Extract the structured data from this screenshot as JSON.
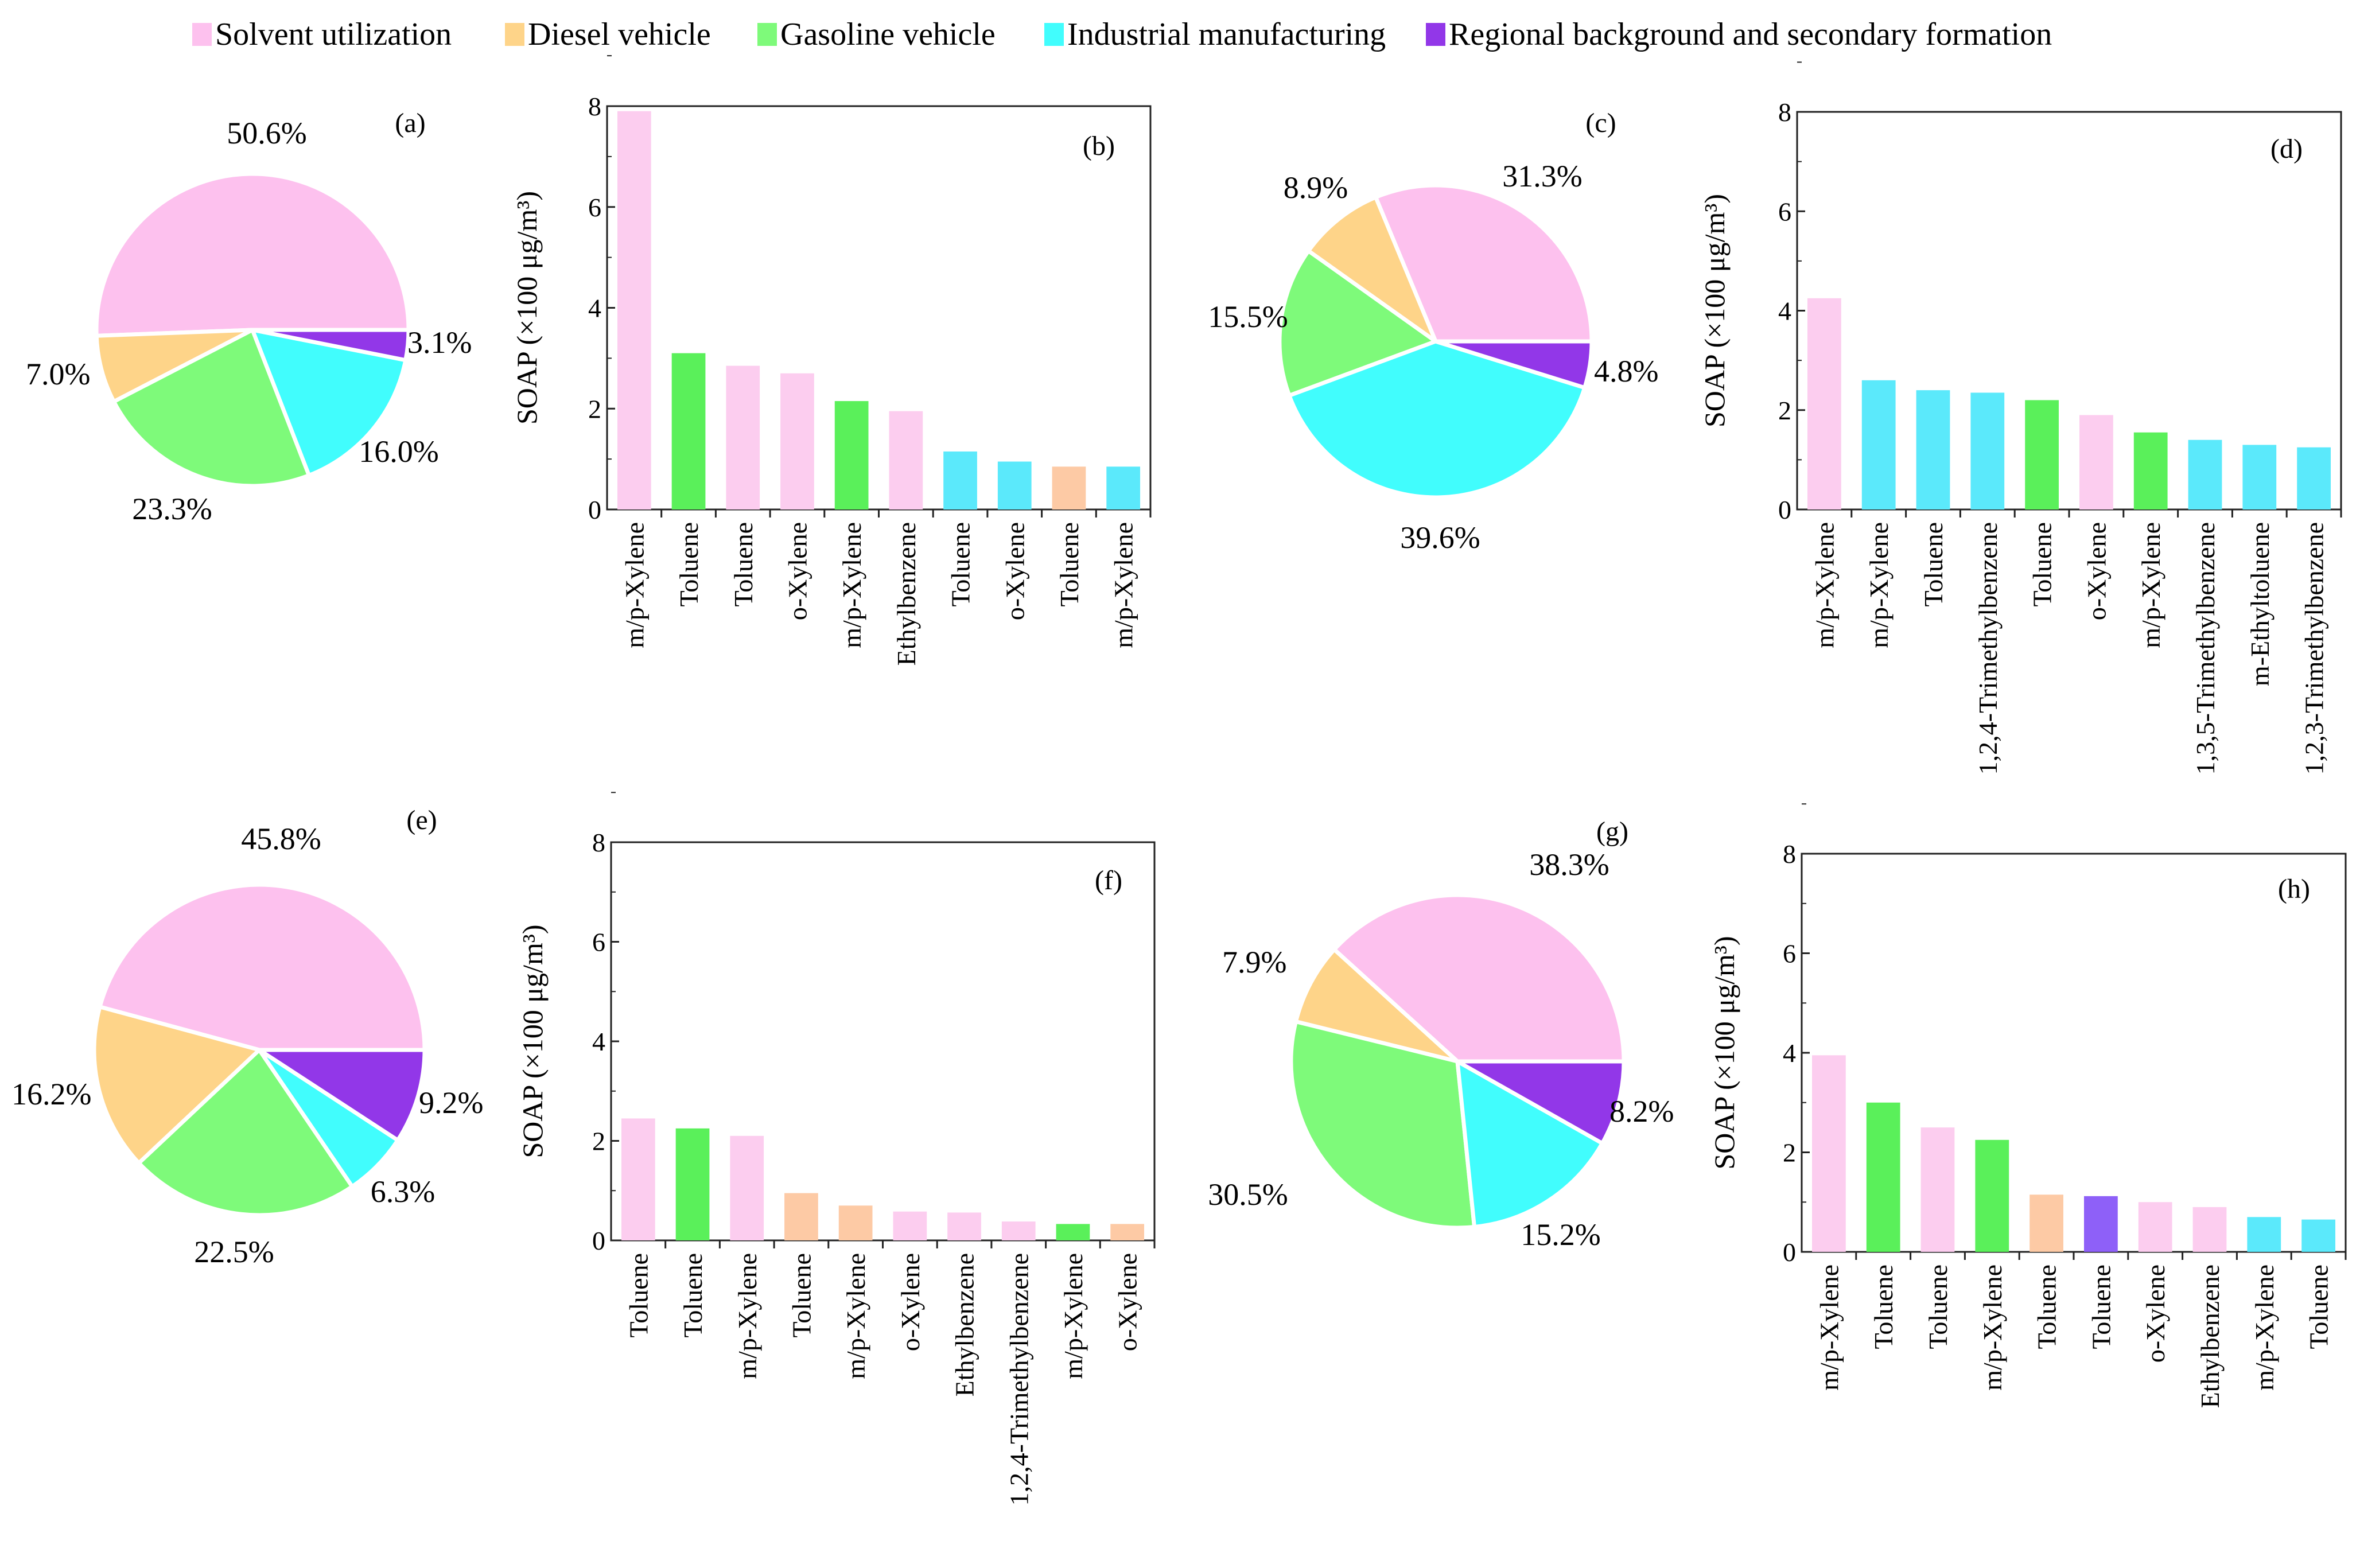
{
  "colors": {
    "Solvent utilization": "#fdc1ee",
    "Diesel vehicle": "#fed489",
    "Gasoline vehicle": "#7efa7a",
    "Industrial manufacturing": "#41fdfd",
    "Regional background and secondary formation": "#9237e8",
    "bar": {
      "Solvent utilization": "#fccdef",
      "Diesel vehicle": "#fdcaa5",
      "Gasoline vehicle": "#5af05a",
      "Industrial manufacturing": "#5be9fb",
      "Regional background and secondary formation": "#8e60f8"
    }
  },
  "legend": [
    {
      "label": "Solvent utilization",
      "source": "Solvent utilization"
    },
    {
      "label": "Diesel vehicle",
      "source": "Diesel vehicle"
    },
    {
      "label": "Gasoline vehicle",
      "source": "Gasoline vehicle"
    },
    {
      "label": "Industrial manufacturing",
      "source": "Industrial manufacturing"
    },
    {
      "label": "Regional background and secondary formation",
      "source": "Regional background and secondary formation"
    }
  ],
  "chart_data": [
    {
      "type": "pie",
      "panel": "(a)",
      "slices": [
        {
          "source": "Solvent utilization",
          "value": 50.6,
          "label": "50.6%"
        },
        {
          "source": "Diesel vehicle",
          "value": 7.0,
          "label": "7.0%"
        },
        {
          "source": "Gasoline vehicle",
          "value": 23.3,
          "label": "23.3%"
        },
        {
          "source": "Industrial manufacturing",
          "value": 16.0,
          "label": "16.0%"
        },
        {
          "source": "Regional background and secondary formation",
          "value": 3.1,
          "label": "3.1%"
        }
      ]
    },
    {
      "type": "bar",
      "panel": "(b)",
      "ylabel": "SOAP (×100 μg/m³)",
      "ylim": [
        0,
        8
      ],
      "yticks": [
        0,
        2,
        4,
        6,
        8
      ],
      "categories": [
        "m/p-Xylene",
        "Toluene",
        "Toluene",
        "o-Xylene",
        "m/p-Xylene",
        "Ethylbenzene",
        "Toluene",
        "o-Xylene",
        "Toluene",
        "m/p-Xylene"
      ],
      "values": [
        7.9,
        3.1,
        2.85,
        2.7,
        2.15,
        1.95,
        1.15,
        0.95,
        0.85,
        0.85
      ],
      "sources": [
        "Solvent utilization",
        "Gasoline vehicle",
        "Solvent utilization",
        "Solvent utilization",
        "Gasoline vehicle",
        "Solvent utilization",
        "Industrial manufacturing",
        "Industrial manufacturing",
        "Diesel vehicle",
        "Industrial manufacturing"
      ]
    },
    {
      "type": "pie",
      "panel": "(c)",
      "slices": [
        {
          "source": "Solvent utilization",
          "value": 31.3,
          "label": "31.3%"
        },
        {
          "source": "Diesel vehicle",
          "value": 8.9,
          "label": "8.9%"
        },
        {
          "source": "Gasoline vehicle",
          "value": 15.5,
          "label": "15.5%"
        },
        {
          "source": "Industrial manufacturing",
          "value": 39.6,
          "label": "39.6%"
        },
        {
          "source": "Regional background and secondary formation",
          "value": 4.8,
          "label": "4.8%"
        }
      ]
    },
    {
      "type": "bar",
      "panel": "(d)",
      "ylabel": "SOAP (×100 μg/m³)",
      "ylim": [
        0,
        8
      ],
      "yticks": [
        0,
        2,
        4,
        6,
        8
      ],
      "categories": [
        "m/p-Xylene",
        "m/p-Xylene",
        "Toluene",
        "1,2,4-Trimethylbenzene",
        "Toluene",
        "o-Xylene",
        "m/p-Xylene",
        "1,3,5-Trimethylbenzene",
        "m-Ethyltoluene",
        "1,2,3-Trimethylbenzene"
      ],
      "values": [
        4.25,
        2.6,
        2.4,
        2.35,
        2.2,
        1.9,
        1.55,
        1.4,
        1.3,
        1.25
      ],
      "sources": [
        "Solvent utilization",
        "Industrial manufacturing",
        "Industrial manufacturing",
        "Industrial manufacturing",
        "Gasoline vehicle",
        "Solvent utilization",
        "Gasoline vehicle",
        "Industrial manufacturing",
        "Industrial manufacturing",
        "Industrial manufacturing"
      ]
    },
    {
      "type": "pie",
      "panel": "(e)",
      "slices": [
        {
          "source": "Solvent utilization",
          "value": 45.8,
          "label": "45.8%"
        },
        {
          "source": "Diesel vehicle",
          "value": 16.2,
          "label": "16.2%"
        },
        {
          "source": "Gasoline vehicle",
          "value": 22.5,
          "label": "22.5%"
        },
        {
          "source": "Industrial manufacturing",
          "value": 6.3,
          "label": "6.3%"
        },
        {
          "source": "Regional background and secondary formation",
          "value": 9.2,
          "label": "9.2%"
        }
      ]
    },
    {
      "type": "bar",
      "panel": "(f)",
      "ylabel": "SOAP (×100 μg/m³)",
      "ylim": [
        0,
        8
      ],
      "yticks": [
        0,
        2,
        4,
        6,
        8
      ],
      "categories": [
        "Toluene",
        "Toluene",
        "m/p-Xylene",
        "Toluene",
        "m/p-Xylene",
        "o-Xylene",
        "Ethylbenzene",
        "1,2,4-Trimethylbenzene",
        "m/p-Xylene",
        "o-Xylene"
      ],
      "values": [
        2.45,
        2.25,
        2.1,
        0.95,
        0.7,
        0.58,
        0.56,
        0.38,
        0.33,
        0.33
      ],
      "sources": [
        "Solvent utilization",
        "Gasoline vehicle",
        "Solvent utilization",
        "Diesel vehicle",
        "Diesel vehicle",
        "Solvent utilization",
        "Solvent utilization",
        "Solvent utilization",
        "Gasoline vehicle",
        "Diesel vehicle"
      ]
    },
    {
      "type": "pie",
      "panel": "(g)",
      "slices": [
        {
          "source": "Solvent utilization",
          "value": 38.3,
          "label": "38.3%"
        },
        {
          "source": "Diesel vehicle",
          "value": 7.9,
          "label": "7.9%"
        },
        {
          "source": "Gasoline vehicle",
          "value": 30.5,
          "label": "30.5%"
        },
        {
          "source": "Industrial manufacturing",
          "value": 15.2,
          "label": "15.2%"
        },
        {
          "source": "Regional background and secondary formation",
          "value": 8.2,
          "label": "8.2%"
        }
      ]
    },
    {
      "type": "bar",
      "panel": "(h)",
      "ylabel": "SOAP (×100 μg/m³)",
      "ylim": [
        0,
        8
      ],
      "yticks": [
        0,
        2,
        4,
        6,
        8
      ],
      "categories": [
        "m/p-Xylene",
        "Toluene",
        "Toluene",
        "m/p-Xylene",
        "Toluene",
        "Toluene",
        "o-Xylene",
        "Ethylbenzene",
        "m/p-Xylene",
        "Toluene"
      ],
      "values": [
        3.95,
        3.0,
        2.5,
        2.25,
        1.15,
        1.12,
        1.0,
        0.9,
        0.7,
        0.65
      ],
      "sources": [
        "Solvent utilization",
        "Gasoline vehicle",
        "Solvent utilization",
        "Gasoline vehicle",
        "Diesel vehicle",
        "Regional background and secondary formation",
        "Solvent utilization",
        "Solvent utilization",
        "Industrial manufacturing",
        "Industrial manufacturing"
      ]
    }
  ]
}
